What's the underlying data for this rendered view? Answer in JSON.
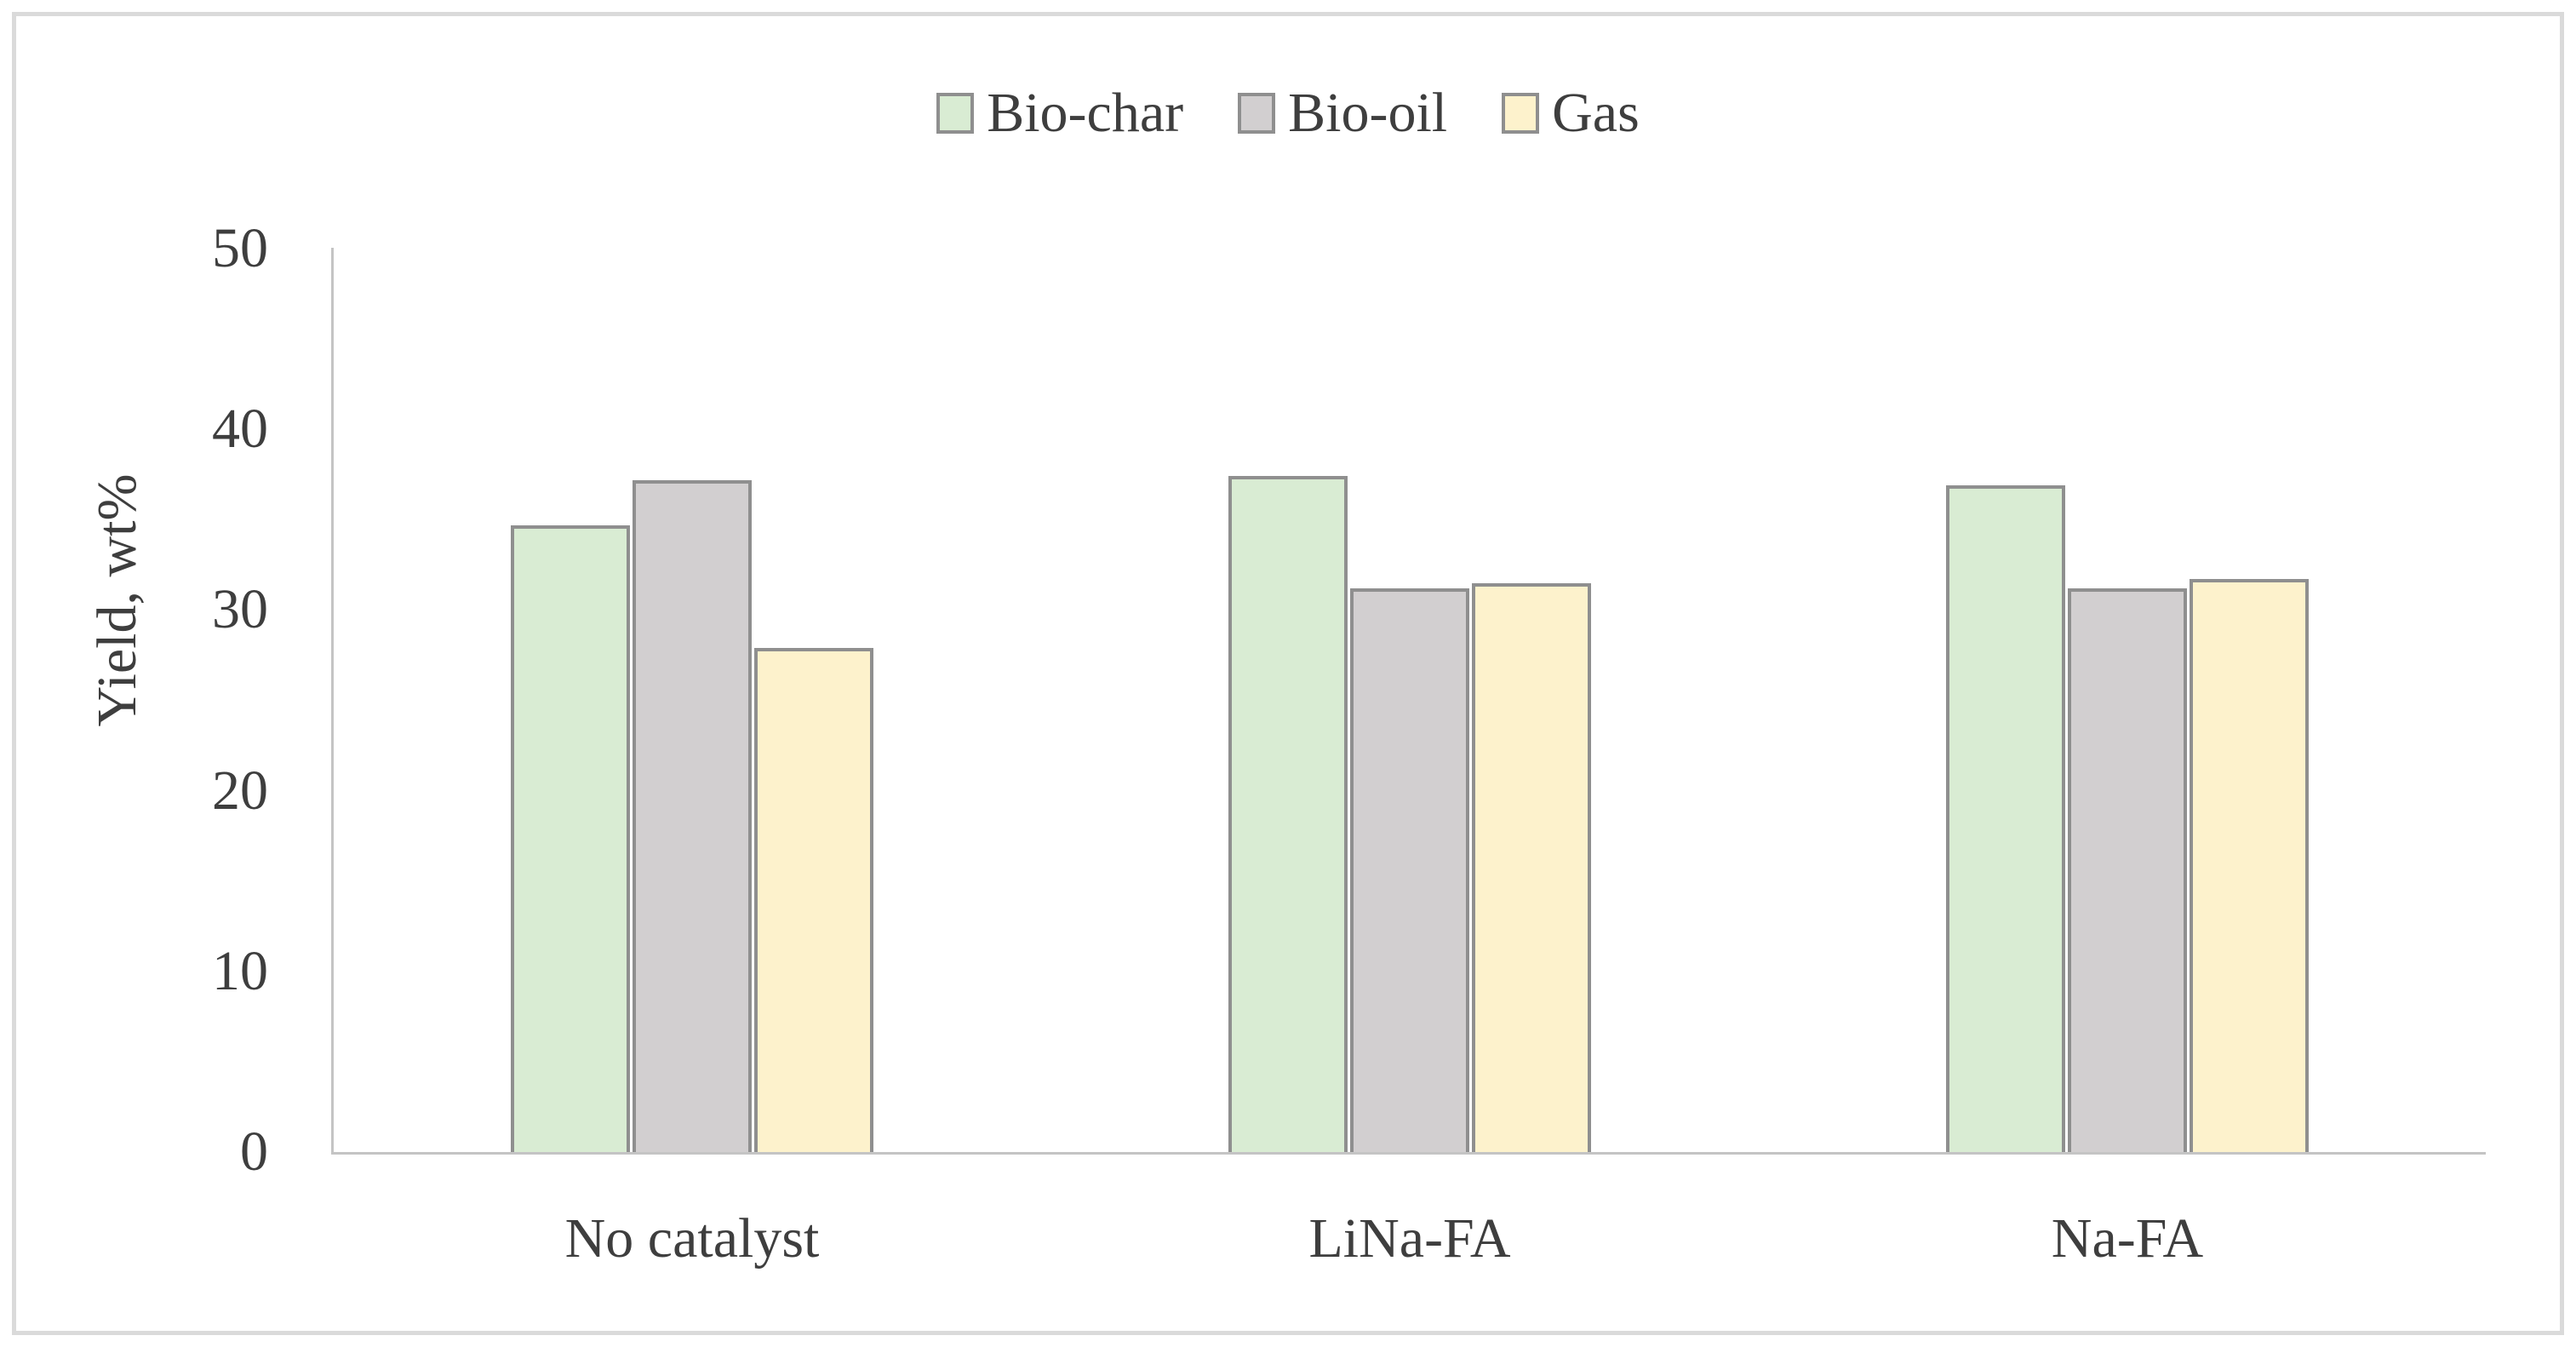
{
  "chart_data": {
    "type": "bar",
    "title": "",
    "categories": [
      "No catalyst",
      "LiNa-FA",
      "Na-FA"
    ],
    "series": [
      {
        "name": "Bio-char",
        "color": "#D9ECD3",
        "values": [
          34.7,
          37.4,
          36.9
        ]
      },
      {
        "name": "Bio-oil",
        "color": "#D2CFD0",
        "values": [
          37.2,
          31.2,
          31.2
        ]
      },
      {
        "name": "Gas",
        "color": "#FDF2CC",
        "values": [
          27.9,
          31.5,
          31.7
        ]
      }
    ],
    "xlabel": "",
    "ylabel": "Yield, wt%",
    "ylim": [
      0,
      50
    ],
    "yticks": [
      0,
      10,
      20,
      30,
      40,
      50
    ],
    "grid": false,
    "legend_position": "top-center"
  },
  "colors": {
    "text": "#3E3E3E",
    "axis_line": "#C4C4C4",
    "bar_border": "#8F8F8F",
    "frame_border": "#DADADA",
    "background": "#FFFFFF"
  }
}
